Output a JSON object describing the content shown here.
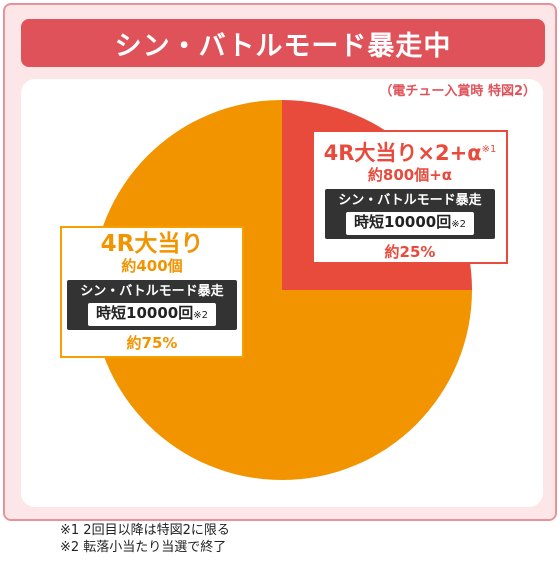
{
  "header": {
    "title": "シン・バトルモード暴走中",
    "note": "（電チュー入賞時 特図2）"
  },
  "chart_data": {
    "type": "pie",
    "slices": [
      {
        "label": "4R大当り×2+α",
        "label_mark": "※1",
        "payout": "約800個+α",
        "mode": "シン・バトルモード暴走",
        "jitan": "時短10000回",
        "jitan_mark": "※2",
        "percent_label": "約25%",
        "value": 25,
        "color": "#e84a3c"
      },
      {
        "label": "4R大当り",
        "payout": "約400個",
        "mode": "シン・バトルモード暴走",
        "jitan": "時短10000回",
        "jitan_mark": "※2",
        "percent_label": "約75%",
        "value": 75,
        "color": "#f29400"
      }
    ]
  },
  "footnotes": [
    "※1  2回目以降は特図2に限る",
    "※2  転落小当たり当選で終了"
  ]
}
